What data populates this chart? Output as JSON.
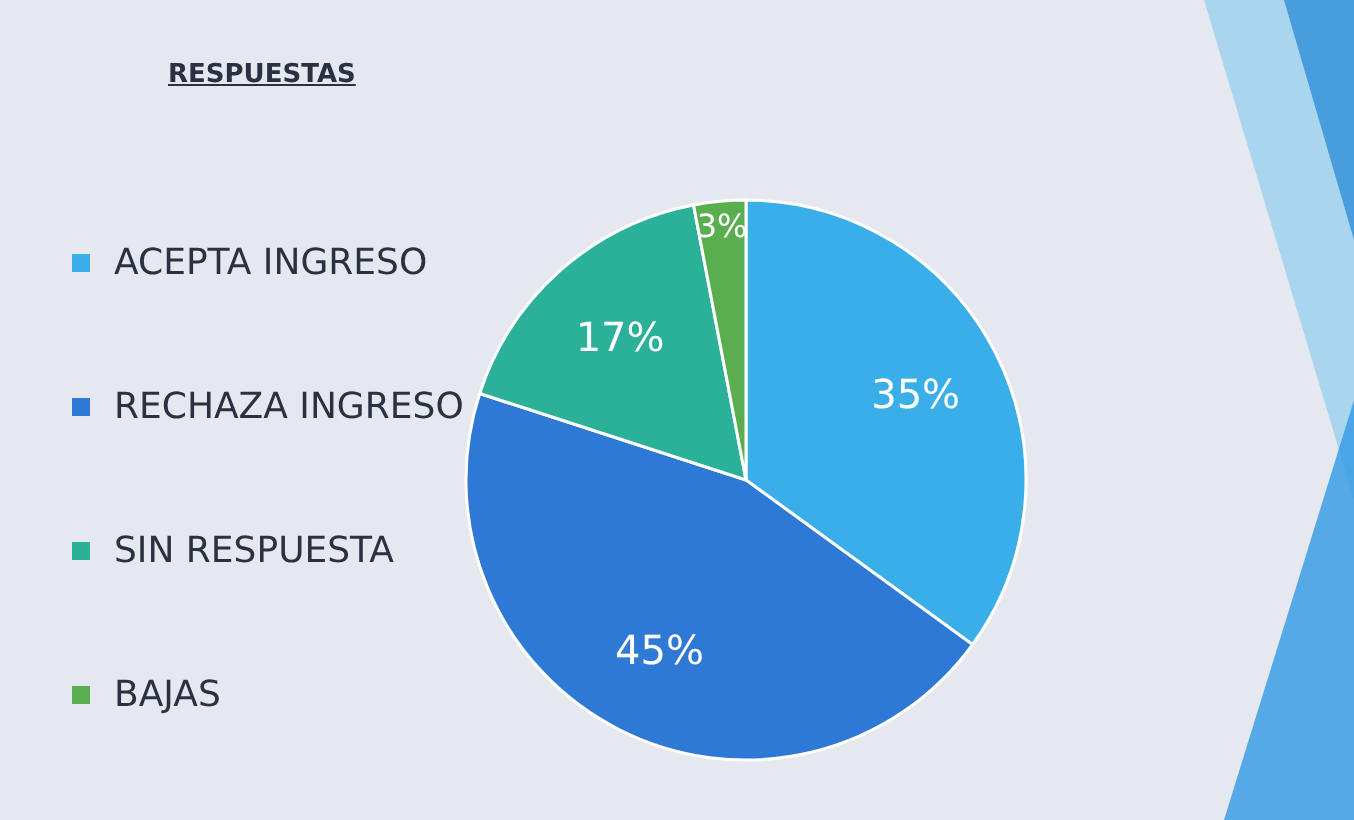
{
  "chart_data": {
    "type": "pie",
    "title": "RESPUESTAS",
    "categories": [
      "ACEPTA INGRESO",
      "RECHAZA INGRESO",
      "SIN RESPUESTA",
      "BAJAS"
    ],
    "values": [
      35,
      45,
      17,
      3
    ],
    "colors": [
      "#3aaee8",
      "#2e78d6",
      "#2bb09a",
      "#5aae4f"
    ],
    "value_labels": [
      "35%",
      "45%",
      "17%",
      "3%"
    ],
    "legend": "left"
  }
}
